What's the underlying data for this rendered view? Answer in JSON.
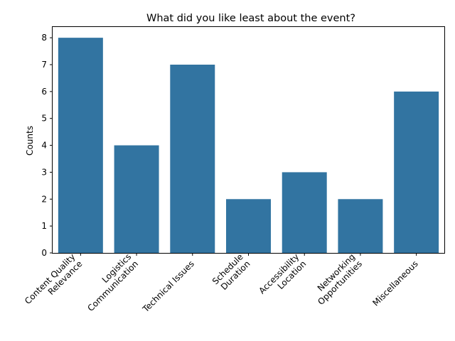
{
  "chart_data": {
    "type": "bar",
    "title": "What did you like least about the event?",
    "xlabel": "",
    "ylabel": "Counts",
    "categories": [
      [
        "Content Quality",
        "Relevance"
      ],
      [
        "Logistics",
        "Communication"
      ],
      [
        "Technical Issues"
      ],
      [
        "Schedule",
        "Duration"
      ],
      [
        "Accessibility",
        "Location"
      ],
      [
        "Networking",
        "Opportunities"
      ],
      [
        "Miscellaneous"
      ]
    ],
    "values": [
      8,
      4,
      7,
      2,
      3,
      2,
      6
    ],
    "ylim": [
      0,
      8.4
    ],
    "yticks": [
      0,
      1,
      2,
      3,
      4,
      5,
      6,
      7,
      8
    ],
    "grid": false,
    "legend": "none",
    "bar_color": "#3274a1"
  }
}
